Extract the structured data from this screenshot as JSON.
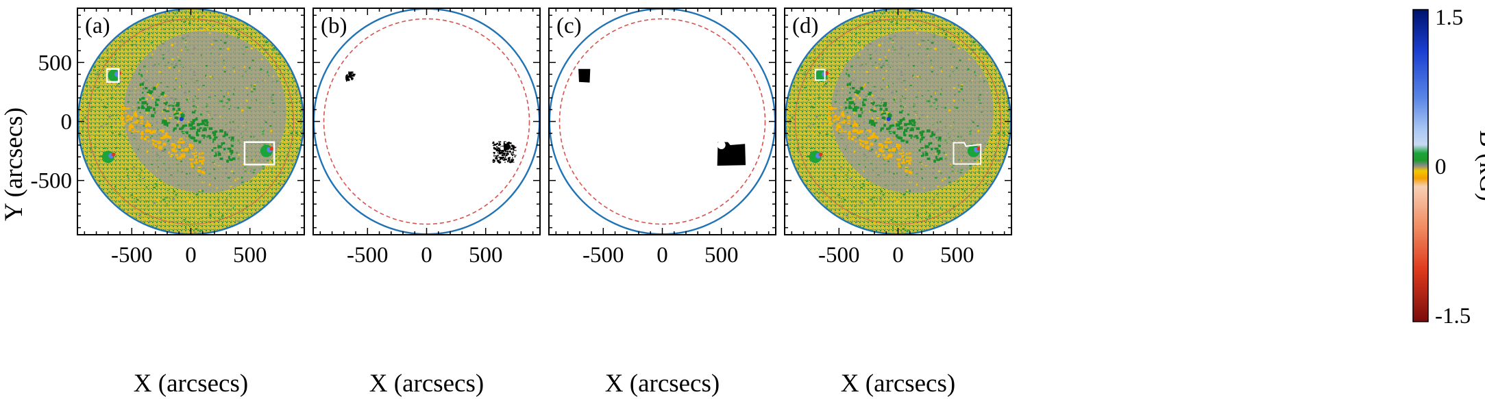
{
  "chart_data": {
    "type": "heatmap",
    "panels": [
      {
        "id": "a",
        "label": "(a)",
        "content": "magnetogram",
        "boxes": [
          {
            "name": "box-upper-left",
            "x_range": [
              -710,
              -610
            ],
            "y_range": [
              335,
              445
            ]
          },
          {
            "name": "box-lower-right",
            "x_range": [
              455,
              705
            ],
            "y_range": [
              -365,
              -175
            ]
          }
        ]
      },
      {
        "id": "b",
        "label": "(b)",
        "content": "sunspot-mask-sparse"
      },
      {
        "id": "c",
        "label": "(c)",
        "content": "sunspot-mask-solid"
      },
      {
        "id": "d",
        "label": "(d)",
        "content": "magnetogram-with-contours"
      }
    ],
    "xlabel": "X (arcsecs)",
    "ylabel": "Y (arcsecs)",
    "xlim": [
      -960,
      960
    ],
    "ylim": [
      -960,
      960
    ],
    "xticks": [
      -500,
      0,
      500
    ],
    "xtick_labels": [
      "-500",
      "0",
      "500"
    ],
    "yticks": [
      500,
      0,
      -500
    ],
    "ytick_labels": [
      "500",
      "0",
      "-500"
    ],
    "solar_limb_radius": 955,
    "inner_circle_radius": 870,
    "colorbar": {
      "label": "B (kG)",
      "min": -1.5,
      "max": 1.5,
      "tick_labels": [
        "1.5",
        "0",
        "-1.5"
      ],
      "stops": [
        {
          "value": 1.5,
          "color": "#00126e"
        },
        {
          "value": 1.1,
          "color": "#1a3fd1"
        },
        {
          "value": 0.65,
          "color": "#5a86e6"
        },
        {
          "value": 0.35,
          "color": "#a9c6f2"
        },
        {
          "value": 0.2,
          "color": "#c8d9f2"
        },
        {
          "value": 0.12,
          "color": "#1aa43a"
        },
        {
          "value": 0.05,
          "color": "#1f9b2c"
        },
        {
          "value": 0.0,
          "color": "#8a8a8a"
        },
        {
          "value": -0.05,
          "color": "#f2c800"
        },
        {
          "value": -0.12,
          "color": "#f5a000"
        },
        {
          "value": -0.2,
          "color": "#f8cfb4"
        },
        {
          "value": -0.6,
          "color": "#f08a60"
        },
        {
          "value": -1.0,
          "color": "#df3a1c"
        },
        {
          "value": -1.5,
          "color": "#7a0d0d"
        }
      ]
    },
    "colors": {
      "limb": "#1f72b4",
      "inner_circle": "#d9534f",
      "box": "#ffffff",
      "mask": "#000000"
    }
  }
}
